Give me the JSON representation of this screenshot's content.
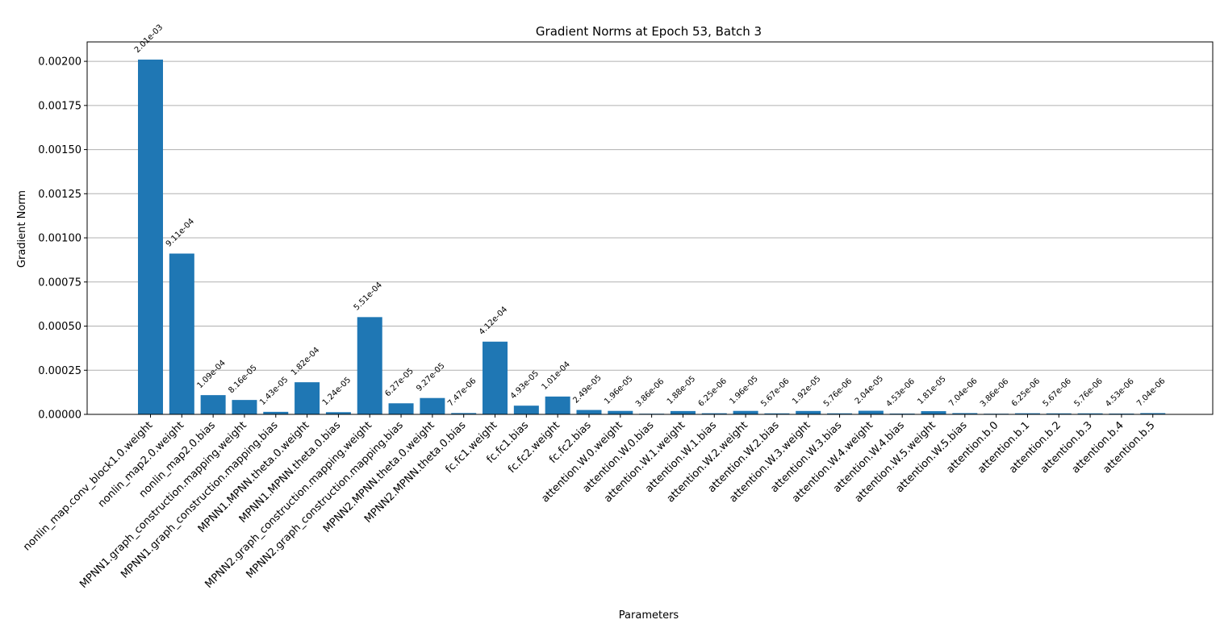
{
  "chart_data": {
    "type": "bar",
    "title": "Gradient Norms at Epoch 53, Batch 3",
    "xlabel": "Parameters",
    "ylabel": "Gradient Norm",
    "ylim": [
      0,
      0.00211
    ],
    "yticks": [
      "0.00000",
      "0.00025",
      "0.00050",
      "0.00075",
      "0.00100",
      "0.00125",
      "0.00150",
      "0.00175",
      "0.00200"
    ],
    "grid": "y-major",
    "bar_color": "#1f77b4",
    "categories": [
      "nonlin_map.conv_block1.0.weight",
      "nonlin_map2.0.weight",
      "nonlin_map2.0.bias",
      "MPNN1.graph_construction.mapping.weight",
      "MPNN1.graph_construction.mapping.bias",
      "MPNN1.MPNN.theta.0.weight",
      "MPNN1.MPNN.theta.0.bias",
      "MPNN2.graph_construction.mapping.weight",
      "MPNN2.graph_construction.mapping.bias",
      "MPNN2.MPNN.theta.0.weight",
      "MPNN2.MPNN.theta.0.bias",
      "fc.fc1.weight",
      "fc.fc1.bias",
      "fc.fc2.weight",
      "fc.fc2.bias",
      "attention.W.0.weight",
      "attention.W.0.bias",
      "attention.W.1.weight",
      "attention.W.1.bias",
      "attention.W.2.weight",
      "attention.W.2.bias",
      "attention.W.3.weight",
      "attention.W.3.bias",
      "attention.W.4.weight",
      "attention.W.4.bias",
      "attention.W.5.weight",
      "attention.W.5.bias",
      "attention.b.0",
      "attention.b.1",
      "attention.b.2",
      "attention.b.3",
      "attention.b.4",
      "attention.b.5"
    ],
    "values": [
      0.00201,
      0.000911,
      0.000109,
      8.16e-05,
      1.43e-05,
      0.000182,
      1.24e-05,
      0.000551,
      6.27e-05,
      9.27e-05,
      7.47e-06,
      0.000412,
      4.93e-05,
      0.000101,
      2.49e-05,
      1.96e-05,
      3.86e-06,
      1.88e-05,
      6.25e-06,
      1.96e-05,
      5.67e-06,
      1.92e-05,
      5.76e-06,
      2.04e-05,
      4.53e-06,
      1.81e-05,
      7.04e-06,
      3.86e-06,
      6.25e-06,
      5.67e-06,
      5.76e-06,
      4.53e-06,
      7.04e-06
    ],
    "data_labels": [
      "2.01e-03",
      "9.11e-04",
      "1.09e-04",
      "8.16e-05",
      "1.43e-05",
      "1.82e-04",
      "1.24e-05",
      "5.51e-04",
      "6.27e-05",
      "9.27e-05",
      "7.47e-06",
      "4.12e-04",
      "4.93e-05",
      "1.01e-04",
      "2.49e-05",
      "1.96e-05",
      "3.86e-06",
      "1.88e-05",
      "6.25e-06",
      "1.96e-05",
      "5.67e-06",
      "1.92e-05",
      "5.76e-06",
      "2.04e-05",
      "4.53e-06",
      "1.81e-05",
      "7.04e-06",
      "3.86e-06",
      "6.25e-06",
      "5.67e-06",
      "5.76e-06",
      "4.53e-06",
      "7.04e-06"
    ]
  }
}
